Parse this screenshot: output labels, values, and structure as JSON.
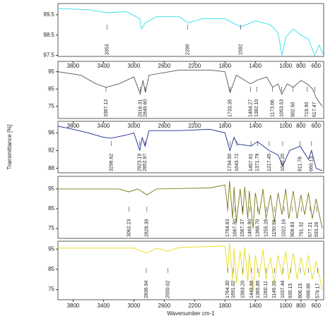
{
  "chart_data": [
    {
      "type": "line",
      "xlim": [
        4000,
        500
      ],
      "ylim": [
        97.45,
        100.05
      ],
      "yticks": [
        99.5,
        98.5,
        97.5
      ],
      "xticks": [],
      "series": [
        {
          "color": "#2fe0e8",
          "x": [
            4000,
            3600,
            3353,
            3100,
            2920,
            2900,
            2850,
            2700,
            2400,
            2290,
            2100,
            1800,
            1592,
            1400,
            1200,
            1100,
            1050,
            1000,
            900,
            800,
            700,
            620,
            560,
            500
          ],
          "values": [
            99.8,
            99.75,
            99.6,
            99.65,
            99.3,
            98.8,
            99.1,
            99.4,
            99.4,
            99.1,
            99.3,
            99.3,
            98.9,
            99.2,
            99.0,
            98.6,
            97.5,
            98.4,
            98.8,
            98.5,
            98.3,
            97.5,
            98.0,
            97.5
          ]
        }
      ],
      "peaks": [
        {
          "x": 3353,
          "label": "3353"
        },
        {
          "x": 2290,
          "label": "2290"
        },
        {
          "x": 1592,
          "label": "1592"
        }
      ]
    },
    {
      "type": "line",
      "xlim": [
        4000,
        500
      ],
      "ylim": [
        68,
        101
      ],
      "yticks": [
        95,
        85,
        75
      ],
      "xticks": [
        3800,
        3400,
        3000,
        2600,
        2200,
        1800,
        1400,
        1000,
        800,
        600
      ],
      "series": [
        {
          "color": "#555555",
          "x": [
            4000,
            3700,
            3500,
            3367,
            3200,
            3000,
            2916,
            2880,
            2849,
            2800,
            2400,
            2000,
            1800,
            1733,
            1650,
            1464,
            1382,
            1250,
            1173,
            1100,
            1053,
            980,
            902,
            800,
            719,
            645,
            600,
            520
          ],
          "values": [
            95,
            93,
            88,
            86,
            88,
            92,
            82,
            90,
            83,
            93,
            96,
            96,
            95,
            83,
            93,
            88,
            90,
            92,
            86,
            88,
            82,
            88,
            86,
            90,
            88,
            85,
            80,
            75
          ]
        }
      ],
      "peaks": [
        {
          "x": 3367.12,
          "label": "3367.12"
        },
        {
          "x": 2916.31,
          "label": "2916.31"
        },
        {
          "x": 2849.6,
          "label": "2849.60"
        },
        {
          "x": 1733.35,
          "label": "1733.35"
        },
        {
          "x": 1464.27,
          "label": "1464.27"
        },
        {
          "x": 1382.1,
          "label": "1382.10"
        },
        {
          "x": 1173.66,
          "label": "1173.66"
        },
        {
          "x": 1053.53,
          "label": "1053.53"
        },
        {
          "x": 902.5,
          "label": "902.50"
        },
        {
          "x": 719.9,
          "label": "719.90"
        },
        {
          "x": 617.47,
          "label": "617.47"
        }
      ]
    },
    {
      "type": "line",
      "xlim": [
        4000,
        500
      ],
      "ylim": [
        87,
        98.6
      ],
      "yticks": [
        96,
        92,
        88
      ],
      "xticks": [
        3800,
        3400,
        3000,
        2600,
        2200,
        1800,
        1400,
        1000,
        800,
        600
      ],
      "ylabel": "Transmittance [%]",
      "series": [
        {
          "color": "#1a2a8c",
          "x": [
            4000,
            3800,
            3600,
            3400,
            3296,
            3100,
            3000,
            2923,
            2890,
            2853,
            2800,
            2400,
            2000,
            1800,
            1734,
            1680,
            1643,
            1458,
            1372,
            1217,
            1100,
            1040,
            950,
            811,
            700,
            660,
            600,
            520
          ],
          "values": [
            97.5,
            96.8,
            96,
            95,
            94.8,
            95.5,
            96,
            92,
            95,
            93,
            96.5,
            96.5,
            96.8,
            96,
            92,
            95,
            93.5,
            93,
            94,
            92,
            91,
            88.5,
            92,
            93,
            90,
            92,
            88,
            87.5
          ]
        }
      ],
      "peaks": [
        {
          "x": 3296.62,
          "label": "3296.62"
        },
        {
          "x": 2923.19,
          "label": "2923.19"
        },
        {
          "x": 2852.97,
          "label": "2852.97"
        },
        {
          "x": 1734.5,
          "label": "1734.50"
        },
        {
          "x": 1643.72,
          "label": "1643.72"
        },
        {
          "x": 1457.91,
          "label": "1457.91"
        },
        {
          "x": 1371.79,
          "label": "1371.79"
        },
        {
          "x": 1217.45,
          "label": "1217.45"
        },
        {
          "x": 1040.2,
          "label": "1040.20"
        },
        {
          "x": 811.78,
          "label": "811.78"
        },
        {
          "x": 660.13,
          "label": "660.13"
        }
      ]
    },
    {
      "type": "line",
      "xlim": [
        4000,
        500
      ],
      "ylim": [
        70,
        101.4
      ],
      "yticks": [
        95,
        85,
        75
      ],
      "xticks": [],
      "series": [
        {
          "color": "#7a7a1a",
          "x": [
            4000,
            3200,
            3062,
            2950,
            2828,
            2700,
            2000,
            1800,
            1764,
            1740,
            1700,
            1680,
            1650,
            1600,
            1567,
            1540,
            1500,
            1480,
            1430,
            1400,
            1350,
            1300,
            1260,
            1200,
            1150,
            1100,
            1050,
            1000,
            960,
            900,
            850,
            800,
            750,
            700,
            650,
            600,
            520
          ],
          "values": [
            95,
            95,
            93.5,
            95,
            92,
            95,
            95.5,
            97,
            85,
            99,
            80,
            96,
            78,
            95,
            82,
            96,
            80,
            94,
            75,
            93,
            82,
            95,
            80,
            92,
            78,
            93,
            82,
            95,
            80,
            94,
            80,
            92,
            82,
            93,
            80,
            90,
            75
          ]
        }
      ],
      "peaks": [
        {
          "x": 3062.23,
          "label": "3062.23"
        },
        {
          "x": 2828.39,
          "label": "2828.39"
        },
        {
          "x": 1764.83,
          "label": "1764.83"
        },
        {
          "x": 1667.5,
          "label": "1667.50"
        },
        {
          "x": 1567.37,
          "label": "1567.37"
        },
        {
          "x": 1469.8,
          "label": "1469.80"
        },
        {
          "x": 1368.7,
          "label": "1368.70"
        },
        {
          "x": 1255.28,
          "label": "1255.28"
        },
        {
          "x": 1150.91,
          "label": "1150.91"
        },
        {
          "x": 1022.16,
          "label": "1022.16"
        },
        {
          "x": 909.83,
          "label": "909.83"
        },
        {
          "x": 791.32,
          "label": "791.32"
        },
        {
          "x": 677.21,
          "label": "677.21"
        },
        {
          "x": 593.26,
          "label": "593.26"
        }
      ]
    },
    {
      "type": "line",
      "xlim": [
        4000,
        500
      ],
      "ylim": [
        70,
        98.9
      ],
      "yticks": [
        95,
        85,
        75
      ],
      "xticks": [
        3800,
        3400,
        3000,
        2600,
        2200,
        1800,
        1400,
        1000,
        800,
        600
      ],
      "xlabel": "Wavenumber cm-1",
      "series": [
        {
          "color": "#e6dc1e",
          "x": [
            4000,
            3000,
            2836,
            2700,
            2550,
            2400,
            1800,
            1764,
            1740,
            1700,
            1680,
            1650,
            1600,
            1567,
            1540,
            1500,
            1480,
            1430,
            1400,
            1350,
            1300,
            1260,
            1200,
            1150,
            1100,
            1050,
            1000,
            960,
            900,
            850,
            800,
            750,
            700,
            650,
            600,
            520
          ],
          "values": [
            95.5,
            95.5,
            93,
            95.5,
            94,
            95.8,
            96.5,
            84,
            98,
            80,
            95,
            78,
            94,
            82,
            96,
            79,
            93,
            74,
            92,
            81,
            95,
            80,
            91,
            78,
            92,
            82,
            94,
            80,
            93,
            80,
            91,
            82,
            92,
            80,
            89,
            75
          ]
        }
      ],
      "peaks": [
        {
          "x": 2836.94,
          "label": "2836.94"
        },
        {
          "x": 2550.02,
          "label": "2550.02"
        },
        {
          "x": 1764.3,
          "label": "1764.30"
        },
        {
          "x": 1691.02,
          "label": "1691.02"
        },
        {
          "x": 1563.2,
          "label": "1563.20"
        },
        {
          "x": 1449.66,
          "label": "1449.66"
        },
        {
          "x": 1365.85,
          "label": "1365.85"
        },
        {
          "x": 1260.11,
          "label": "1260.11"
        },
        {
          "x": 1149.2,
          "label": "1149.20"
        },
        {
          "x": 1037.44,
          "label": "1037.44"
        },
        {
          "x": 935.15,
          "label": "935.15"
        },
        {
          "x": 806.15,
          "label": "806.15"
        },
        {
          "x": 698.86,
          "label": "698.86"
        },
        {
          "x": 579.17,
          "label": "579.17"
        }
      ]
    }
  ]
}
